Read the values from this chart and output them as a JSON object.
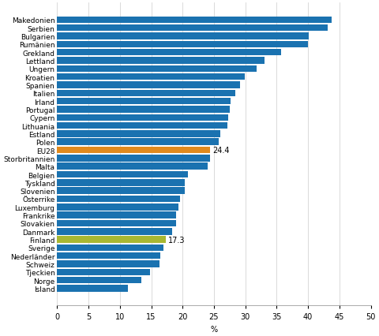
{
  "categories": [
    "Makedonien",
    "Serbien",
    "Bulgarien",
    "Rumänien",
    "Grekland",
    "Lettland",
    "Ungern",
    "Kroatien",
    "Spanien",
    "Italien",
    "Irland",
    "Portugal",
    "Cypern",
    "Lithuania",
    "Estland",
    "Polen",
    "EU28",
    "Storbritannien",
    "Malta",
    "Belgien",
    "Tyskland",
    "Slovenien",
    "Österrike",
    "Luxemburg",
    "Frankrike",
    "Slovakien",
    "Danmark",
    "Finland",
    "Sverige",
    "Nederländer",
    "Schweiz",
    "Tjeckien",
    "Norge",
    "Island"
  ],
  "values": [
    43.7,
    43.1,
    40.1,
    40.0,
    35.7,
    33.0,
    31.8,
    29.9,
    29.2,
    28.4,
    27.6,
    27.5,
    27.3,
    27.2,
    26.0,
    25.8,
    24.4,
    24.4,
    24.0,
    20.8,
    20.3,
    20.4,
    19.6,
    19.3,
    18.9,
    18.9,
    18.3,
    17.3,
    16.9,
    16.5,
    16.3,
    14.8,
    13.4,
    11.3
  ],
  "colors": [
    "#1a72b0",
    "#1a72b0",
    "#1a72b0",
    "#1a72b0",
    "#1a72b0",
    "#1a72b0",
    "#1a72b0",
    "#1a72b0",
    "#1a72b0",
    "#1a72b0",
    "#1a72b0",
    "#1a72b0",
    "#1a72b0",
    "#1a72b0",
    "#1a72b0",
    "#1a72b0",
    "#e08a1e",
    "#1a72b0",
    "#1a72b0",
    "#1a72b0",
    "#1a72b0",
    "#1a72b0",
    "#1a72b0",
    "#1a72b0",
    "#1a72b0",
    "#1a72b0",
    "#1a72b0",
    "#a8b832",
    "#1a72b0",
    "#1a72b0",
    "#1a72b0",
    "#1a72b0",
    "#1a72b0",
    "#1a72b0"
  ],
  "annotations": [
    {
      "label": "24.4",
      "bar_index": 16
    },
    {
      "label": "17.3",
      "bar_index": 27
    }
  ],
  "xlabel": "%",
  "xlim": [
    0,
    50
  ],
  "xticks": [
    0,
    5,
    10,
    15,
    20,
    25,
    30,
    35,
    40,
    45,
    50
  ],
  "bar_height": 0.82,
  "background_color": "#ffffff",
  "label_fontsize": 6.5,
  "tick_fontsize": 7.0,
  "annot_fontsize": 7.0
}
